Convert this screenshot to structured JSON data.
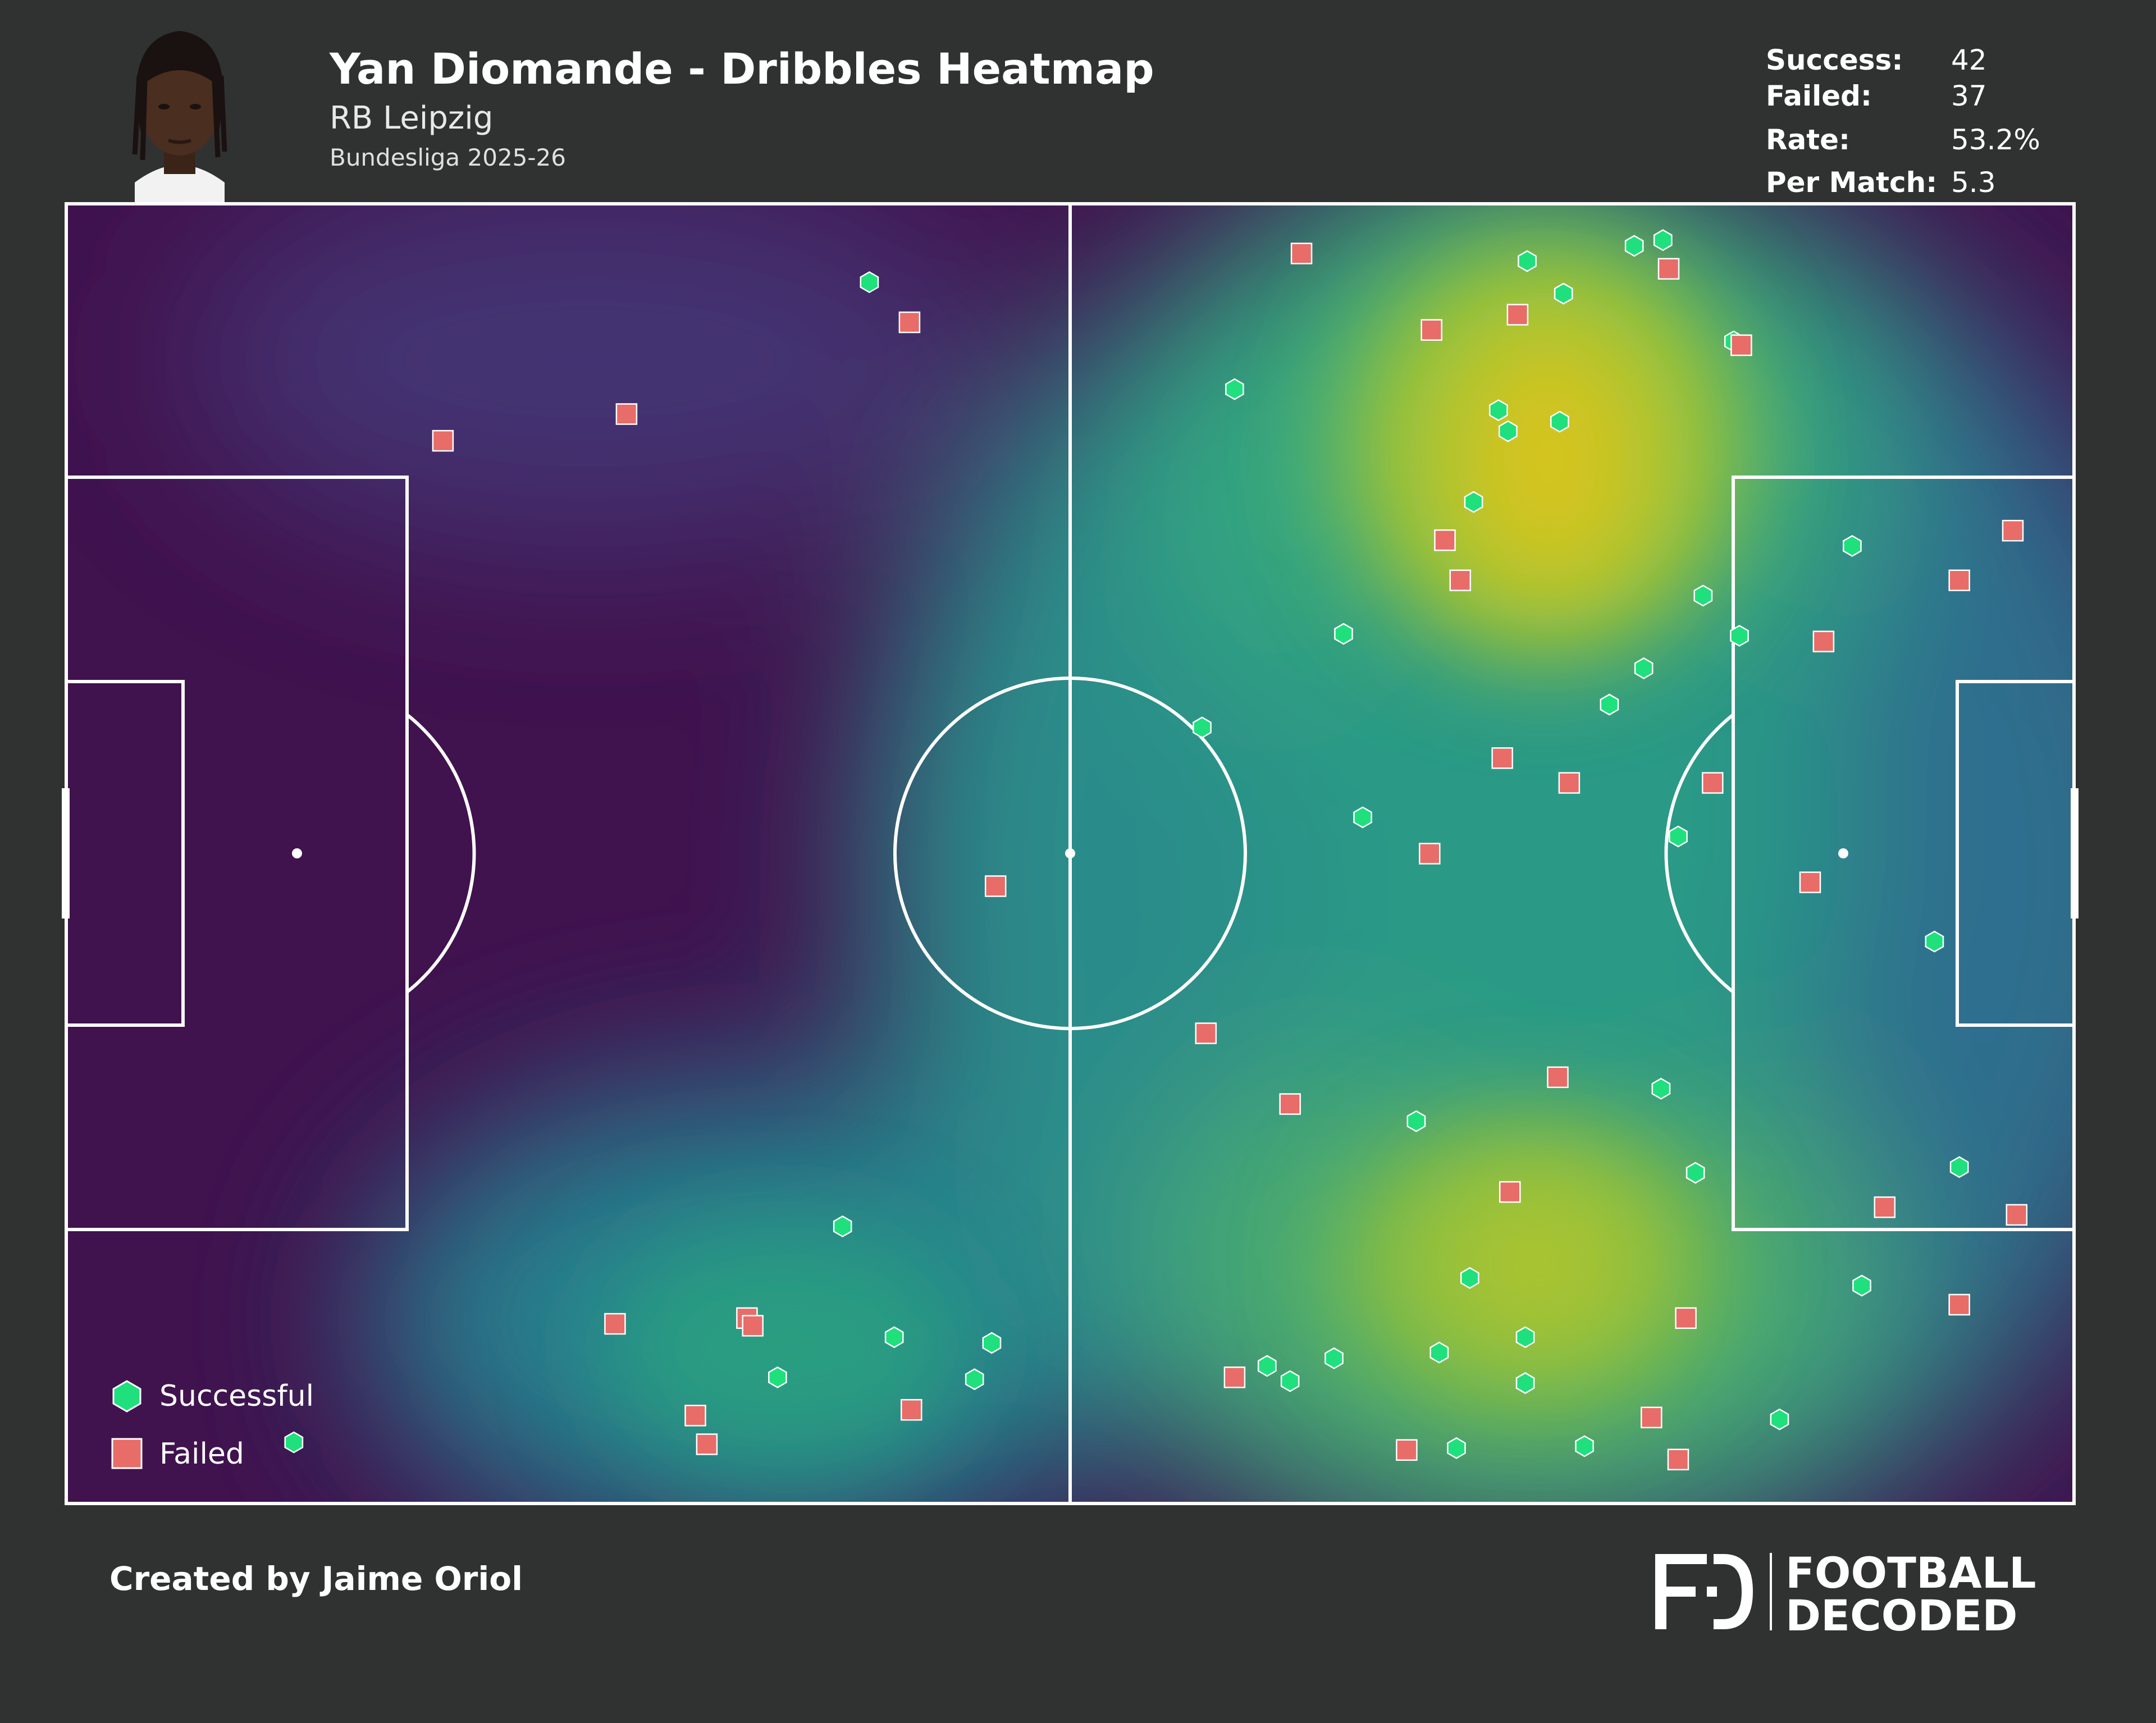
{
  "header": {
    "title": "Yan Diomande - Dribbles Heatmap",
    "team": "RB Leipzig",
    "competition": "Bundesliga 2025-26",
    "avatar_icon": "player-photo"
  },
  "stats": [
    {
      "label": "Success:",
      "value": "42"
    },
    {
      "label": "Failed:",
      "value": "37"
    },
    {
      "label": "Rate:",
      "value": "53.2%"
    },
    {
      "label": "Per Match:",
      "value": "5.3"
    }
  ],
  "chart_data": {
    "type": "scatter",
    "pitch": {
      "length": 105,
      "width": 68,
      "orientation": "attacking left to right",
      "background": "density heatmap (viridis)"
    },
    "legend": {
      "placement": "bottom-left",
      "entries": [
        "Successful",
        "Failed"
      ]
    },
    "series": [
      {
        "name": "Successful",
        "marker": "hexagon",
        "color": "#1fe07c",
        "points": [
          [
            42.0,
            63.9
          ],
          [
            76.4,
            65.0
          ],
          [
            78.3,
            63.3
          ],
          [
            83.5,
            66.1
          ],
          [
            82.0,
            65.8
          ],
          [
            74.9,
            57.2
          ],
          [
            75.4,
            56.1
          ],
          [
            78.1,
            56.6
          ],
          [
            61.1,
            58.3
          ],
          [
            73.6,
            52.4
          ],
          [
            87.2,
            60.8
          ],
          [
            93.4,
            50.1
          ],
          [
            66.8,
            45.5
          ],
          [
            85.6,
            47.5
          ],
          [
            87.5,
            45.4
          ],
          [
            82.5,
            43.7
          ],
          [
            80.7,
            41.8
          ],
          [
            59.4,
            40.6
          ],
          [
            84.3,
            34.9
          ],
          [
            67.8,
            35.9
          ],
          [
            97.7,
            29.4
          ],
          [
            83.4,
            21.7
          ],
          [
            70.6,
            20.0
          ],
          [
            85.2,
            17.3
          ],
          [
            99.0,
            17.6
          ],
          [
            73.4,
            11.8
          ],
          [
            93.9,
            11.4
          ],
          [
            40.6,
            14.5
          ],
          [
            43.3,
            8.7
          ],
          [
            48.4,
            8.4
          ],
          [
            76.3,
            8.7
          ],
          [
            71.8,
            7.9
          ],
          [
            66.3,
            7.6
          ],
          [
            37.2,
            6.6
          ],
          [
            47.5,
            6.5
          ],
          [
            62.8,
            7.2
          ],
          [
            64.0,
            6.4
          ],
          [
            76.3,
            6.3
          ],
          [
            89.6,
            4.4
          ],
          [
            72.7,
            2.9
          ],
          [
            79.4,
            3.0
          ],
          [
            11.9,
            3.2
          ]
        ]
      },
      {
        "name": "Failed",
        "marker": "square",
        "color": "#e86c68",
        "points": [
          [
            64.6,
            65.4
          ],
          [
            83.8,
            64.6
          ],
          [
            71.4,
            61.4
          ],
          [
            75.9,
            62.2
          ],
          [
            44.1,
            61.8
          ],
          [
            87.6,
            60.6
          ],
          [
            29.3,
            57.0
          ],
          [
            19.7,
            55.6
          ],
          [
            101.8,
            50.9
          ],
          [
            72.1,
            50.4
          ],
          [
            72.9,
            48.3
          ],
          [
            99.0,
            48.3
          ],
          [
            91.9,
            45.1
          ],
          [
            75.1,
            39.0
          ],
          [
            78.6,
            37.7
          ],
          [
            86.1,
            37.7
          ],
          [
            71.3,
            34.0
          ],
          [
            48.6,
            32.3
          ],
          [
            91.2,
            32.5
          ],
          [
            59.6,
            24.6
          ],
          [
            64.0,
            20.9
          ],
          [
            78.0,
            22.3
          ],
          [
            75.5,
            16.3
          ],
          [
            95.1,
            15.5
          ],
          [
            102.0,
            15.1
          ],
          [
            28.7,
            9.4
          ],
          [
            35.6,
            9.7
          ],
          [
            35.9,
            9.3
          ],
          [
            84.7,
            9.7
          ],
          [
            99.0,
            10.4
          ],
          [
            61.1,
            6.6
          ],
          [
            32.9,
            4.6
          ],
          [
            44.2,
            4.9
          ],
          [
            33.5,
            3.1
          ],
          [
            70.1,
            2.8
          ],
          [
            82.9,
            4.5
          ],
          [
            84.3,
            2.3
          ]
        ]
      }
    ]
  },
  "footer": {
    "credit": "Created by Jaime Oriol",
    "brand_line1": "FOOTBALL",
    "brand_line2": "DECODED",
    "brand_icon": "fd-logo"
  }
}
